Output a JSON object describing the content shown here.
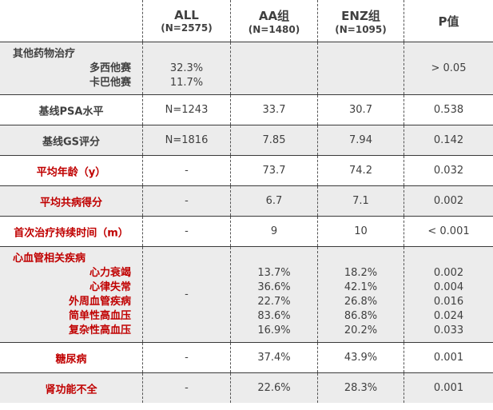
{
  "header": {
    "columns": [
      {
        "title": "ALL",
        "subtitle": "(N=2575)"
      },
      {
        "title": "AA组",
        "subtitle": "(N=1480)"
      },
      {
        "title": "ENZ组",
        "subtitle": "(N=1095)"
      },
      {
        "title": "P值"
      }
    ]
  },
  "rows": [
    {
      "label": "其他药物治疗",
      "sublabels": [
        "多西他赛",
        "卡巴他赛"
      ],
      "color": "#404040",
      "cells": [
        [
          "32.3%",
          "11.7%"
        ],
        [],
        [],
        [
          "> 0.05"
        ]
      ]
    },
    {
      "label": "基线PSA水平",
      "color": "#404040",
      "cells": [
        [
          "N=1243"
        ],
        [
          "33.7"
        ],
        [
          "30.7"
        ],
        [
          "0.538"
        ]
      ]
    },
    {
      "label": "基线GS评分",
      "color": "#404040",
      "cells": [
        [
          "N=1816"
        ],
        [
          "7.85"
        ],
        [
          "7.94"
        ],
        [
          "0.142"
        ]
      ]
    },
    {
      "label": "平均年龄（y）",
      "color": "#c00000",
      "cells": [
        [
          "-"
        ],
        [
          "73.7"
        ],
        [
          "74.2"
        ],
        [
          "0.032"
        ]
      ]
    },
    {
      "label": "平均共病得分",
      "color": "#c00000",
      "cells": [
        [
          "-"
        ],
        [
          "6.7"
        ],
        [
          "7.1"
        ],
        [
          "0.002"
        ]
      ]
    },
    {
      "label": "首次治疗持续时间（m）",
      "color": "#c00000",
      "cells": [
        [
          "-"
        ],
        [
          "9"
        ],
        [
          "10"
        ],
        [
          "< 0.001"
        ]
      ]
    },
    {
      "label": "心血管相关疾病",
      "sublabels": [
        "心力衰竭",
        "心律失常",
        "外周血管疾病",
        "简单性高血压",
        "复杂性高血压"
      ],
      "color": "#c00000",
      "cells": [
        [
          "-"
        ],
        [
          "13.7%",
          "36.6%",
          "22.7%",
          "83.6%",
          "16.9%"
        ],
        [
          "18.2%",
          "42.1%",
          "26.8%",
          "86.8%",
          "20.2%"
        ],
        [
          "0.002",
          "0.004",
          "0.016",
          "0.024",
          "0.033"
        ]
      ]
    },
    {
      "label": "糖尿病",
      "color": "#c00000",
      "cells": [
        [
          "-"
        ],
        [
          "37.4%"
        ],
        [
          "43.9%"
        ],
        [
          "0.001"
        ]
      ]
    },
    {
      "label": "肾功能不全",
      "color": "#c00000",
      "cells": [
        [
          "-"
        ],
        [
          "22.6%"
        ],
        [
          "28.3%"
        ],
        [
          "0.001"
        ]
      ]
    }
  ]
}
